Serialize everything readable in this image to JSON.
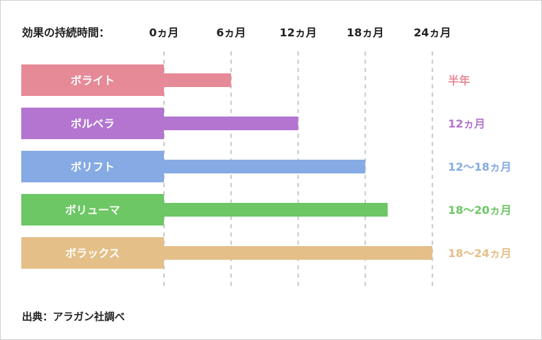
{
  "header_label": "効果の持続時間：",
  "source_note": "出典：アラガン社調べ",
  "colors": {
    "text": "#222222",
    "grid": "#c8c8c8",
    "bar_label": "#ffffff"
  },
  "chart_data": {
    "type": "bar",
    "orientation": "horizontal",
    "x_unit": "months",
    "xlim": [
      0,
      24
    ],
    "x_ticks": [
      {
        "value": 0,
        "label": "0ヵ月"
      },
      {
        "value": 6,
        "label": "6ヵ月"
      },
      {
        "value": 12,
        "label": "12ヵ月"
      },
      {
        "value": 18,
        "label": "18ヵ月"
      },
      {
        "value": 24,
        "label": "24ヵ月"
      }
    ],
    "grid": true,
    "categories": [
      "ボライト",
      "ボルベラ",
      "ボリフト",
      "ボリューマ",
      "ボラックス"
    ],
    "values": [
      6,
      12,
      18,
      20,
      24
    ],
    "range_labels": [
      "半年",
      "12ヵ月",
      "12〜18ヵ月",
      "18〜20ヵ月",
      "18〜24ヵ月"
    ],
    "bar_colors": [
      "#e68a98",
      "#b375cf",
      "#86aae3",
      "#6cc764",
      "#e4bf88"
    ]
  }
}
